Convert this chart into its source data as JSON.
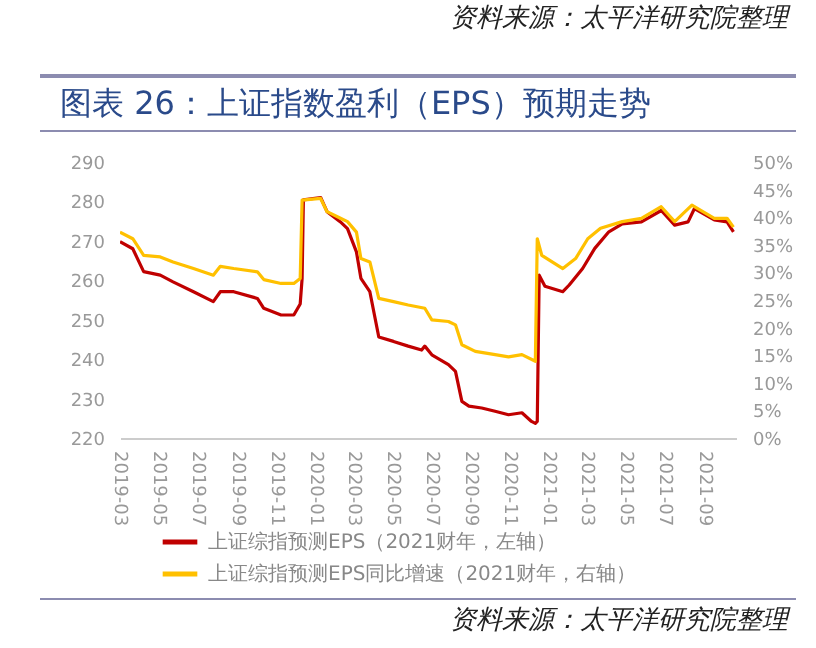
{
  "chart_data": {
    "type": "line",
    "title": "图表 26：上证指数盈利（EPS）预期走势",
    "annotations": [
      "资料来源：太平洋研究院整理",
      "资料来源：太平洋研究院整理"
    ],
    "xlim": [
      "2019-03-01",
      "2021-10-20"
    ],
    "xticks": [
      "2019-03",
      "2019-05",
      "2019-07",
      "2019-09",
      "2019-11",
      "2020-01",
      "2020-03",
      "2020-05",
      "2020-07",
      "2020-09",
      "2020-11",
      "2021-01",
      "2021-03",
      "2021-05",
      "2021-07",
      "2021-09"
    ],
    "ylim": [
      220,
      290
    ],
    "yticks": [
      220,
      230,
      240,
      250,
      260,
      270,
      280,
      290
    ],
    "y2lim": [
      0,
      50
    ],
    "y2ticks": [
      {
        "value": 0,
        "label": "0%"
      },
      {
        "value": 5,
        "label": "5%"
      },
      {
        "value": 10,
        "label": "10%"
      },
      {
        "value": 15,
        "label": "15%"
      },
      {
        "value": 20,
        "label": "20%"
      },
      {
        "value": 25,
        "label": "25%"
      },
      {
        "value": 30,
        "label": "30%"
      },
      {
        "value": 35,
        "label": "35%"
      },
      {
        "value": 40,
        "label": "40%"
      },
      {
        "value": 45,
        "label": "45%"
      },
      {
        "value": 50,
        "label": "50%"
      }
    ],
    "grid": false,
    "legend": "bottom",
    "line_style": "solid",
    "marker": "none",
    "series": [
      {
        "name": "上证综指预测EPS（2021财年，左轴）",
        "color": "#c00000",
        "x": [
          "2019-03-01",
          "2019-03-21",
          "2019-04-07",
          "2019-05-03",
          "2019-05-23",
          "2019-06-24",
          "2019-07-25",
          "2019-08-05",
          "2019-08-26",
          "2019-10-02",
          "2019-10-12",
          "2019-11-08",
          "2019-11-28",
          "2019-12-08",
          "2019-12-11",
          "2019-12-13",
          "2020-01-09",
          "2020-01-19",
          "2020-02-09",
          "2020-02-20",
          "2020-03-05",
          "2020-03-12",
          "2020-03-26",
          "2020-04-09",
          "2020-05-02",
          "2020-05-25",
          "2020-06-15",
          "2020-06-20",
          "2020-07-01",
          "2020-07-27",
          "2020-08-07",
          "2020-08-17",
          "2020-08-28",
          "2020-09-17",
          "2020-10-08",
          "2020-10-29",
          "2020-11-19",
          "2020-12-04",
          "2020-12-10",
          "2020-12-13",
          "2020-12-16",
          "2020-12-25",
          "2021-01-22",
          "2021-02-01",
          "2021-02-22",
          "2021-03-13",
          "2021-04-04",
          "2021-04-25",
          "2021-05-25",
          "2021-06-25",
          "2021-07-16",
          "2021-08-06",
          "2021-08-16",
          "2021-09-16",
          "2021-10-06",
          "2021-10-16"
        ],
        "values": [
          269.8,
          268,
          262.2,
          261.3,
          259.6,
          257.1,
          254.6,
          257.1,
          257.1,
          255.4,
          252.9,
          251.2,
          251.2,
          254,
          260.5,
          280.4,
          281,
          277.4,
          274.8,
          273.1,
          267.2,
          260.5,
          257.1,
          245.6,
          244.5,
          243.3,
          242.3,
          243.3,
          241.1,
          238.6,
          236.9,
          229.3,
          228.1,
          227.6,
          226.8,
          225.9,
          226.4,
          224.2,
          223.7,
          224.2,
          261.3,
          258.5,
          257.1,
          258.8,
          263,
          268.1,
          272.3,
          274.3,
          274.8,
          277.7,
          274,
          274.8,
          278.2,
          275.3,
          274.8,
          272.3
        ]
      },
      {
        "name": "上证综指预测EPS同比增速（2021财年，右轴）",
        "color": "#ffc000",
        "axis": "y2",
        "x": [
          "2019-03-01",
          "2019-03-21",
          "2019-04-07",
          "2019-05-03",
          "2019-05-23",
          "2019-06-24",
          "2019-07-25",
          "2019-08-05",
          "2019-08-26",
          "2019-10-02",
          "2019-10-12",
          "2019-11-08",
          "2019-11-28",
          "2019-12-08",
          "2019-12-11",
          "2020-01-09",
          "2020-01-19",
          "2020-02-09",
          "2020-02-20",
          "2020-03-05",
          "2020-03-12",
          "2020-03-26",
          "2020-04-09",
          "2020-05-02",
          "2020-05-25",
          "2020-06-20",
          "2020-07-01",
          "2020-07-27",
          "2020-08-07",
          "2020-08-17",
          "2020-09-07",
          "2020-10-08",
          "2020-10-29",
          "2020-11-19",
          "2020-12-10",
          "2020-12-13",
          "2020-12-20",
          "2021-01-22",
          "2021-02-11",
          "2021-03-02",
          "2021-03-22",
          "2021-04-25",
          "2021-05-25",
          "2021-06-25",
          "2021-07-16",
          "2021-08-12",
          "2021-09-16",
          "2021-10-06",
          "2021-10-16"
        ],
        "values": [
          37.3,
          36.1,
          33.1,
          32.8,
          31.9,
          30.7,
          29.5,
          31.1,
          30.7,
          30.1,
          28.7,
          28,
          28,
          28.9,
          43.1,
          43.4,
          41,
          39.8,
          39.2,
          37.3,
          32.5,
          31.9,
          25.3,
          24.7,
          24.1,
          23.5,
          21.4,
          21.1,
          20.5,
          16.9,
          15.7,
          15.1,
          14.7,
          15.1,
          13.9,
          36.1,
          33.1,
          30.7,
          32.5,
          36.1,
          38,
          39.2,
          39.8,
          41.9,
          39.2,
          42.2,
          39.8,
          39.8,
          38.2
        ]
      }
    ]
  }
}
